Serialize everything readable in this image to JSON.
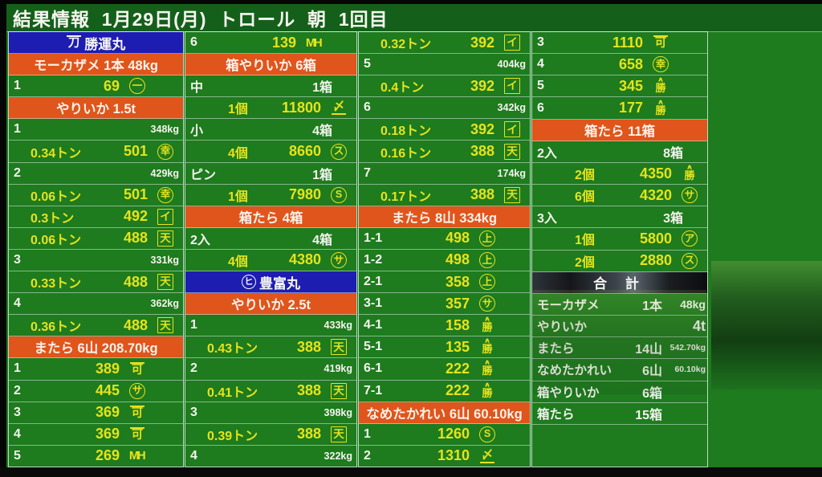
{
  "header": {
    "title": "結果情報  1月29日(月)  トロール  朝  1回目"
  },
  "colors": {
    "screen_green": "#1e7b1e",
    "band_orange": "#e0551b",
    "band_blue": "#1d1db2",
    "value_yellow": "#e6e31c",
    "text_white": "#f4f4ee",
    "total_band_dark": "#14161b"
  },
  "board": {
    "columns": [
      {
        "rows": [
          {
            "t": "ship",
            "mark": {
              "c": "刀",
              "s": "overline"
            },
            "name": "勝運丸"
          },
          {
            "t": "species",
            "label": "モーカザメ 1本 48kg"
          },
          {
            "t": "sale",
            "no": "1",
            "price": "69",
            "mark": {
              "c": "一",
              "s": "circle"
            }
          },
          {
            "t": "species",
            "label": "やりいか 1.5t"
          },
          {
            "t": "lot",
            "no": "1",
            "kg": "348kg"
          },
          {
            "t": "price",
            "qty": "0.34トン",
            "price": "501",
            "mark": {
              "c": "幸",
              "s": "circle"
            }
          },
          {
            "t": "lot",
            "no": "2",
            "kg": "429kg"
          },
          {
            "t": "price",
            "qty": "0.06トン",
            "price": "501",
            "mark": {
              "c": "幸",
              "s": "circle"
            }
          },
          {
            "t": "price",
            "qty": "0.3トン",
            "price": "492",
            "mark": {
              "c": "イ",
              "s": "box"
            }
          },
          {
            "t": "price",
            "qty": "0.06トン",
            "price": "488",
            "mark": {
              "c": "天",
              "s": "box"
            }
          },
          {
            "t": "lot",
            "no": "3",
            "kg": "331kg"
          },
          {
            "t": "price",
            "qty": "0.33トン",
            "price": "488",
            "mark": {
              "c": "天",
              "s": "box"
            }
          },
          {
            "t": "lot",
            "no": "4",
            "kg": "362kg"
          },
          {
            "t": "price",
            "qty": "0.36トン",
            "price": "488",
            "mark": {
              "c": "天",
              "s": "box"
            }
          },
          {
            "t": "species",
            "label": "またら 6山 208.70kg"
          },
          {
            "t": "sale",
            "no": "1",
            "price": "389",
            "mark": {
              "c": "可",
              "s": "overline"
            }
          },
          {
            "t": "sale",
            "no": "2",
            "price": "445",
            "mark": {
              "c": "サ",
              "s": "circle"
            }
          },
          {
            "t": "sale",
            "no": "3",
            "price": "369",
            "mark": {
              "c": "可",
              "s": "overline"
            }
          },
          {
            "t": "sale",
            "no": "4",
            "price": "369",
            "mark": {
              "c": "可",
              "s": "overline"
            }
          },
          {
            "t": "sale",
            "no": "5",
            "price": "269",
            "mark": {
              "c": "MH",
              "s": "plain"
            }
          }
        ]
      },
      {
        "rows": [
          {
            "t": "sale",
            "no": "6",
            "price": "139",
            "mark": {
              "c": "MH",
              "s": "plain"
            }
          },
          {
            "t": "species",
            "label": "箱やりいか 6箱"
          },
          {
            "t": "size",
            "label": "中",
            "count": "1箱"
          },
          {
            "t": "price",
            "cls": "indent2",
            "qty": "1個",
            "price": "11800",
            "mark": {
              "c": "〆",
              "s": "underline"
            }
          },
          {
            "t": "size",
            "label": "小",
            "count": "4箱"
          },
          {
            "t": "price",
            "cls": "indent2",
            "qty": "4個",
            "price": "8660",
            "mark": {
              "c": "ス",
              "s": "circle"
            }
          },
          {
            "t": "size",
            "label": "ピン",
            "count": "1箱"
          },
          {
            "t": "price",
            "cls": "indent2",
            "qty": "1個",
            "price": "7980",
            "mark": {
              "c": "S",
              "s": "circle"
            }
          },
          {
            "t": "species",
            "label": "箱たら 4箱"
          },
          {
            "t": "size",
            "label": "2入",
            "count": "4箱"
          },
          {
            "t": "price",
            "cls": "indent2",
            "qty": "4個",
            "price": "4380",
            "mark": {
              "c": "サ",
              "s": "circle"
            }
          },
          {
            "t": "ship",
            "mark": {
              "c": "ヒ",
              "s": "circle"
            },
            "name": "豊富丸"
          },
          {
            "t": "species",
            "label": "やりいか 2.5t"
          },
          {
            "t": "lot",
            "no": "1",
            "kg": "433kg"
          },
          {
            "t": "price",
            "qty": "0.43トン",
            "price": "388",
            "mark": {
              "c": "天",
              "s": "box"
            }
          },
          {
            "t": "lot",
            "no": "2",
            "kg": "419kg"
          },
          {
            "t": "price",
            "qty": "0.41トン",
            "price": "388",
            "mark": {
              "c": "天",
              "s": "box"
            }
          },
          {
            "t": "lot",
            "no": "3",
            "kg": "398kg"
          },
          {
            "t": "price",
            "qty": "0.39トン",
            "price": "388",
            "mark": {
              "c": "天",
              "s": "box"
            }
          },
          {
            "t": "lot",
            "no": "4",
            "kg": "322kg"
          }
        ]
      },
      {
        "rows": [
          {
            "t": "price",
            "qty": "0.32トン",
            "price": "392",
            "mark": {
              "c": "イ",
              "s": "box"
            }
          },
          {
            "t": "lot",
            "no": "5",
            "kg": "404kg"
          },
          {
            "t": "price",
            "qty": "0.4トン",
            "price": "392",
            "mark": {
              "c": "イ",
              "s": "box"
            }
          },
          {
            "t": "lot",
            "no": "6",
            "kg": "342kg"
          },
          {
            "t": "price",
            "qty": "0.18トン",
            "price": "392",
            "mark": {
              "c": "イ",
              "s": "box"
            }
          },
          {
            "t": "price",
            "qty": "0.16トン",
            "price": "388",
            "mark": {
              "c": "天",
              "s": "box"
            }
          },
          {
            "t": "lot",
            "no": "7",
            "kg": "174kg"
          },
          {
            "t": "price",
            "qty": "0.17トン",
            "price": "388",
            "mark": {
              "c": "天",
              "s": "box"
            }
          },
          {
            "t": "species",
            "label": "またら 8山 334kg"
          },
          {
            "t": "sale",
            "no": "1-1",
            "price": "498",
            "mark": {
              "c": "上",
              "s": "circle"
            }
          },
          {
            "t": "sale",
            "no": "1-2",
            "price": "498",
            "mark": {
              "c": "上",
              "s": "circle"
            }
          },
          {
            "t": "sale",
            "no": "2-1",
            "price": "358",
            "mark": {
              "c": "上",
              "s": "circle"
            }
          },
          {
            "t": "sale",
            "no": "3-1",
            "price": "357",
            "mark": {
              "c": "サ",
              "s": "circle"
            }
          },
          {
            "t": "sale",
            "no": "4-1",
            "price": "158",
            "mark": {
              "c": "勝",
              "s": "caret"
            }
          },
          {
            "t": "sale",
            "no": "5-1",
            "price": "135",
            "mark": {
              "c": "勝",
              "s": "caret"
            }
          },
          {
            "t": "sale",
            "no": "6-1",
            "price": "222",
            "mark": {
              "c": "勝",
              "s": "caret"
            }
          },
          {
            "t": "sale",
            "no": "7-1",
            "price": "222",
            "mark": {
              "c": "勝",
              "s": "caret"
            }
          },
          {
            "t": "species",
            "label": "なめたかれい 6山 60.10kg"
          },
          {
            "t": "sale",
            "no": "1",
            "price": "1260",
            "mark": {
              "c": "S",
              "s": "circle"
            }
          },
          {
            "t": "sale",
            "no": "2",
            "price": "1310",
            "mark": {
              "c": "〆",
              "s": "underline"
            }
          }
        ]
      },
      {
        "rows": [
          {
            "t": "sale",
            "no": "3",
            "price": "1110",
            "mark": {
              "c": "可",
              "s": "overline"
            }
          },
          {
            "t": "sale",
            "no": "4",
            "price": "658",
            "mark": {
              "c": "幸",
              "s": "circle"
            }
          },
          {
            "t": "sale",
            "no": "5",
            "price": "345",
            "mark": {
              "c": "勝",
              "s": "caret"
            }
          },
          {
            "t": "sale",
            "no": "6",
            "price": "177",
            "mark": {
              "c": "勝",
              "s": "caret"
            }
          },
          {
            "t": "species",
            "label": "箱たら 11箱"
          },
          {
            "t": "size",
            "label": "2入",
            "count": "8箱"
          },
          {
            "t": "price",
            "cls": "indent2",
            "qty": "2個",
            "price": "4350",
            "mark": {
              "c": "勝",
              "s": "caret"
            }
          },
          {
            "t": "price",
            "cls": "indent2",
            "qty": "6個",
            "price": "4320",
            "mark": {
              "c": "サ",
              "s": "circle"
            }
          },
          {
            "t": "size",
            "label": "3入",
            "count": "3箱"
          },
          {
            "t": "price",
            "cls": "indent2",
            "qty": "1個",
            "price": "5800",
            "mark": {
              "c": "ア",
              "s": "circle"
            }
          },
          {
            "t": "price",
            "cls": "indent2",
            "qty": "2個",
            "price": "2880",
            "mark": {
              "c": "ス",
              "s": "circle"
            }
          },
          {
            "t": "totalhead",
            "label": "合 計"
          },
          {
            "t": "total",
            "name": "モーカザメ",
            "count": "1本",
            "kg": "48kg",
            "kgSize": "m"
          },
          {
            "t": "total",
            "name": "やりいか",
            "count": "",
            "kg": "4t",
            "kgSize": "l"
          },
          {
            "t": "total",
            "name": "またら",
            "count": "14山",
            "kg": "542.70kg",
            "kgSize": "s"
          },
          {
            "t": "total",
            "name": "なめたかれい",
            "count": "6山",
            "kg": "60.10kg",
            "kgSize": "s"
          },
          {
            "t": "total",
            "name": "箱やりいか",
            "count": "6箱",
            "kg": "",
            "kgSize": "m"
          },
          {
            "t": "total",
            "name": "箱たら",
            "count": "15箱",
            "kg": "",
            "kgSize": "m"
          },
          {
            "t": "empty"
          },
          {
            "t": "empty"
          }
        ]
      }
    ]
  }
}
